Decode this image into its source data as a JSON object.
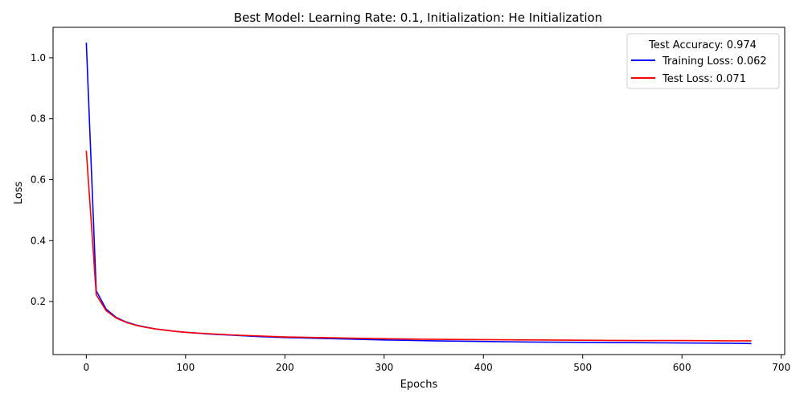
{
  "chart_data": {
    "type": "line",
    "title": "Best Model: Learning Rate: 0.1, Initialization: He Initialization",
    "xlabel": "Epochs",
    "ylabel": "Loss",
    "xlim": [
      -33.5,
      703.5
    ],
    "ylim": [
      0.026,
      1.1
    ],
    "xticks": [
      0,
      100,
      200,
      300,
      400,
      500,
      600,
      700
    ],
    "yticks": [
      0.2,
      0.4,
      0.6,
      0.8,
      1.0
    ],
    "xtick_labels": [
      "0",
      "100",
      "200",
      "300",
      "400",
      "500",
      "600",
      "700"
    ],
    "ytick_labels": [
      "0.2",
      "0.4",
      "0.6",
      "0.8",
      "1.0"
    ],
    "grid": false,
    "legend": {
      "title": "Test Accuracy: 0.974",
      "placement": "top-right"
    },
    "x": [
      0,
      10,
      20,
      30,
      40,
      50,
      60,
      70,
      80,
      90,
      100,
      125,
      150,
      175,
      200,
      250,
      300,
      350,
      400,
      450,
      500,
      550,
      600,
      650,
      670
    ],
    "series": [
      {
        "name": "Training Loss: 0.062",
        "color": "#0000ff",
        "values": [
          1.05,
          0.235,
          0.175,
          0.148,
          0.133,
          0.123,
          0.116,
          0.11,
          0.106,
          0.102,
          0.099,
          0.093,
          0.089,
          0.085,
          0.082,
          0.078,
          0.074,
          0.071,
          0.069,
          0.067,
          0.066,
          0.065,
          0.064,
          0.063,
          0.062
        ]
      },
      {
        "name": "Test Loss: 0.071",
        "color": "#ff0000",
        "values": [
          0.695,
          0.222,
          0.17,
          0.146,
          0.132,
          0.122,
          0.115,
          0.11,
          0.106,
          0.102,
          0.099,
          0.094,
          0.09,
          0.087,
          0.084,
          0.081,
          0.078,
          0.076,
          0.075,
          0.074,
          0.073,
          0.072,
          0.072,
          0.071,
          0.071
        ]
      }
    ]
  }
}
